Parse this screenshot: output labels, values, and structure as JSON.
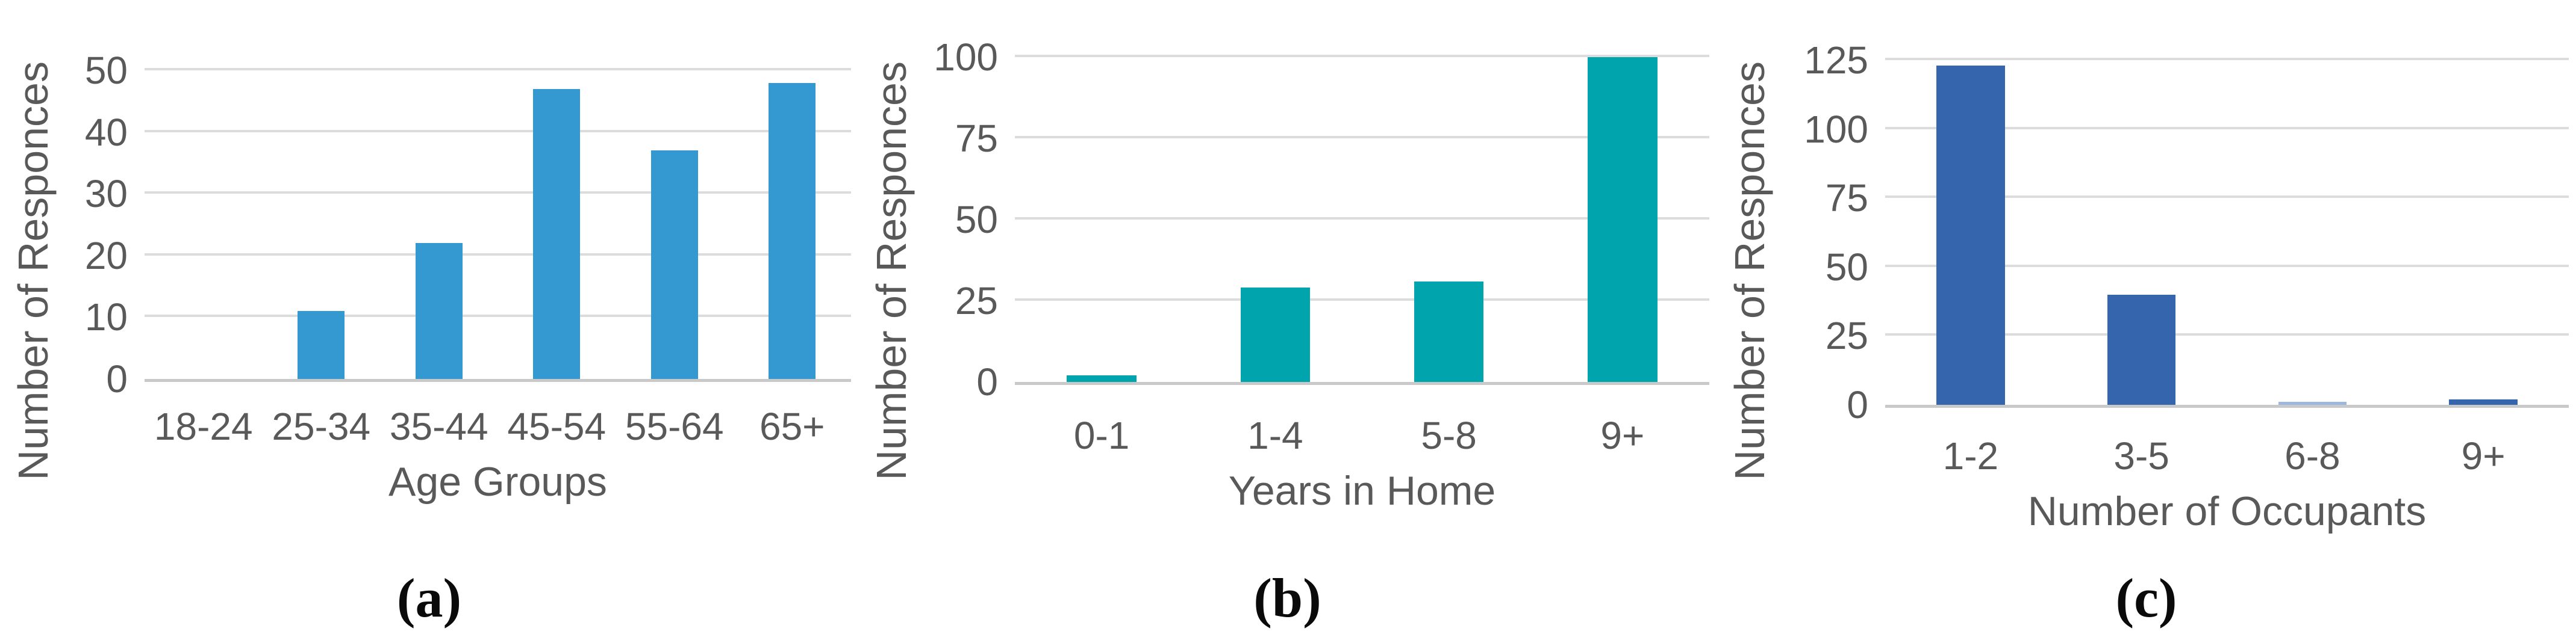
{
  "figure": {
    "background": "#ffffff",
    "text_color": "#595959",
    "grid_color": "#dcdcdc",
    "baseline_color": "#c9c9c9",
    "caption_color": "#0a0a0a"
  },
  "chart_data": [
    {
      "type": "bar",
      "caption": "(a)",
      "title": "",
      "xlabel": "Age Groups",
      "ylabel": "Number of Responces",
      "categories": [
        "18-24",
        "25-34",
        "35-44",
        "45-54",
        "55-64",
        "65+"
      ],
      "values": [
        0,
        11,
        22,
        47,
        37,
        48
      ],
      "ylim": [
        0,
        50
      ],
      "yticks": [
        0,
        10,
        20,
        30,
        40,
        50
      ],
      "bar_color": "#3499D0",
      "grid": true,
      "legend_position": "none"
    },
    {
      "type": "bar",
      "caption": "(b)",
      "title": "",
      "xlabel": "Years in Home",
      "ylabel": "Number of Responces",
      "categories": [
        "0-1",
        "1-4",
        "5-8",
        "9+"
      ],
      "values": [
        2,
        29,
        31,
        100
      ],
      "ylim": [
        0,
        100
      ],
      "yticks": [
        0,
        25,
        50,
        75,
        100
      ],
      "bar_color": "#00A4AD",
      "grid": true,
      "legend_position": "none"
    },
    {
      "type": "bar",
      "caption": "(c)",
      "title": "",
      "xlabel": "Number of Occupants",
      "ylabel": "Number of Responces",
      "categories": [
        "1-2",
        "3-5",
        "6-8",
        "9+"
      ],
      "values": [
        123,
        40,
        1,
        2
      ],
      "ylim": [
        0,
        125
      ],
      "yticks": [
        0,
        25,
        50,
        75,
        100,
        125
      ],
      "bar_color": "#3565AD",
      "bar_colors": [
        "#3565AD",
        "#3565AD",
        "#9DB8DF",
        "#3565AD"
      ],
      "grid": true,
      "legend_position": "none"
    }
  ]
}
